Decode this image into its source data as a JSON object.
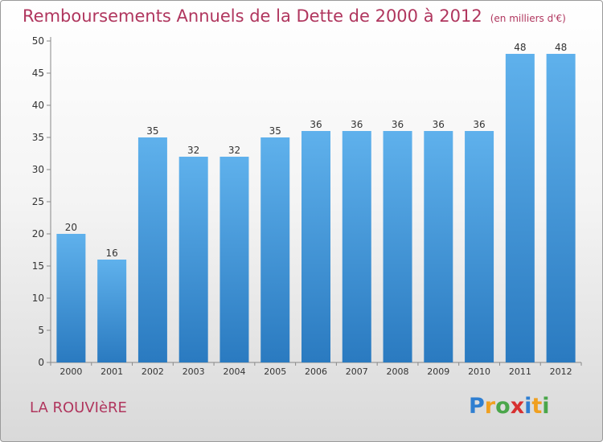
{
  "title": "Remboursements Annuels de la Dette de 2000 à 2012",
  "subtitle": "(en milliers d'€)",
  "commune": "LA ROUVIèRE",
  "logo": {
    "letters": [
      "P",
      "r",
      "o",
      "x",
      "i",
      "t",
      "i"
    ],
    "colors": [
      "#2f7fd1",
      "#f0a020",
      "#4aa64a",
      "#d73030",
      "#2f7fd1",
      "#f0a020",
      "#4aa64a"
    ]
  },
  "colors": {
    "title": "#b0365e",
    "bar_light": "#5fb1ec",
    "bar_dark": "#2a7ac0"
  },
  "chart_data": {
    "type": "bar",
    "categories": [
      "2000",
      "2001",
      "2002",
      "2003",
      "2004",
      "2005",
      "2006",
      "2007",
      "2008",
      "2009",
      "2010",
      "2011",
      "2012"
    ],
    "values": [
      20,
      16,
      35,
      32,
      32,
      35,
      36,
      36,
      36,
      36,
      36,
      48,
      48
    ],
    "ylim": [
      0,
      50
    ],
    "yticks": [
      0,
      5,
      10,
      15,
      20,
      25,
      30,
      35,
      40,
      45,
      50
    ],
    "grid": false,
    "data_labels": true
  }
}
